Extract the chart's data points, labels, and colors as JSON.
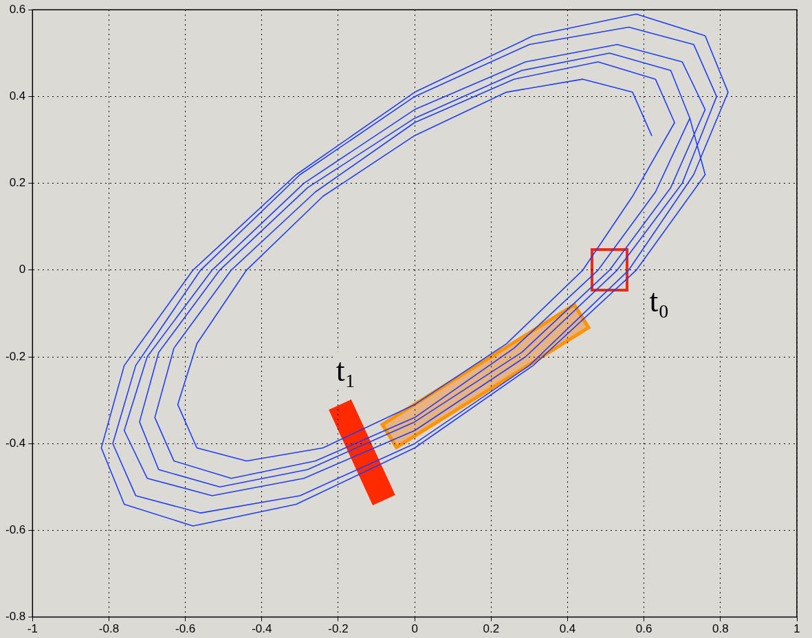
{
  "chart_data": {
    "type": "line",
    "xlim": [
      -1,
      1
    ],
    "ylim": [
      -0.8,
      0.6
    ],
    "xticks": [
      -1,
      -0.8,
      -0.6,
      -0.4,
      -0.2,
      0,
      0.2,
      0.4,
      0.6,
      0.8,
      1
    ],
    "yticks": [
      -0.8,
      -0.6,
      -0.4,
      -0.2,
      0,
      0.2,
      0.4,
      0.6
    ],
    "grid": true,
    "legend": false,
    "marker": "none",
    "line_style": "solid",
    "series": [
      {
        "color": "#1f3cff",
        "x": [
          0.62,
          0.57,
          0.44,
          0.24,
          0,
          -0.24,
          -0.44,
          -0.57,
          -0.62,
          -0.57,
          -0.44,
          -0.24,
          0,
          0.24,
          0.44,
          0.57,
          0.68,
          0.63,
          0.48,
          0.26,
          0,
          -0.26,
          -0.48,
          -0.63,
          -0.68,
          -0.63,
          -0.48,
          -0.26,
          0,
          0.26,
          0.48,
          0.63,
          0.72,
          0.67,
          0.51,
          0.28,
          0,
          -0.28,
          -0.51,
          -0.67,
          -0.72,
          -0.67,
          -0.51,
          -0.28,
          0,
          0.28,
          0.51,
          0.67,
          0.76,
          0.7,
          0.53,
          0.29,
          0,
          -0.29,
          -0.53,
          -0.7,
          -0.76,
          -0.7,
          -0.53,
          -0.29,
          0,
          0.29,
          0.53,
          0.7,
          0.79,
          0.73,
          0.56,
          0.3,
          0,
          -0.3,
          -0.56,
          -0.73,
          -0.79,
          -0.73,
          -0.56,
          -0.3,
          0,
          0.3,
          0.56,
          0.73,
          0.82,
          0.76,
          0.58,
          0.31,
          0,
          -0.31,
          -0.58,
          -0.76,
          -0.82,
          -0.76,
          -0.58,
          -0.31,
          0,
          0.31,
          0.58,
          0.76,
          0.72
        ],
        "values": [
          0.31,
          0.41,
          0.44,
          0.41,
          0.31,
          0.17,
          0,
          -0.17,
          -0.31,
          -0.41,
          -0.44,
          -0.41,
          -0.31,
          -0.17,
          0,
          0.17,
          0.34,
          0.44,
          0.48,
          0.44,
          0.34,
          0.18,
          0,
          -0.18,
          -0.34,
          -0.44,
          -0.48,
          -0.44,
          -0.34,
          -0.18,
          0,
          0.18,
          0.35,
          0.46,
          0.5,
          0.46,
          0.35,
          0.19,
          0,
          -0.19,
          -0.35,
          -0.46,
          -0.5,
          -0.46,
          -0.35,
          -0.19,
          0,
          0.19,
          0.37,
          0.48,
          0.52,
          0.48,
          0.37,
          0.2,
          0,
          -0.2,
          -0.37,
          -0.48,
          -0.52,
          -0.48,
          -0.37,
          -0.2,
          0,
          0.2,
          0.4,
          0.52,
          0.56,
          0.52,
          0.4,
          0.22,
          0,
          -0.22,
          -0.4,
          -0.52,
          -0.56,
          -0.52,
          -0.4,
          -0.22,
          0,
          0.22,
          0.41,
          0.54,
          0.59,
          0.54,
          0.41,
          0.22,
          0,
          -0.22,
          -0.41,
          -0.54,
          -0.59,
          -0.54,
          -0.41,
          -0.22,
          0,
          0.22,
          0.35
        ]
      }
    ],
    "annotations": [
      "t₀",
      "t₁"
    ]
  }
}
